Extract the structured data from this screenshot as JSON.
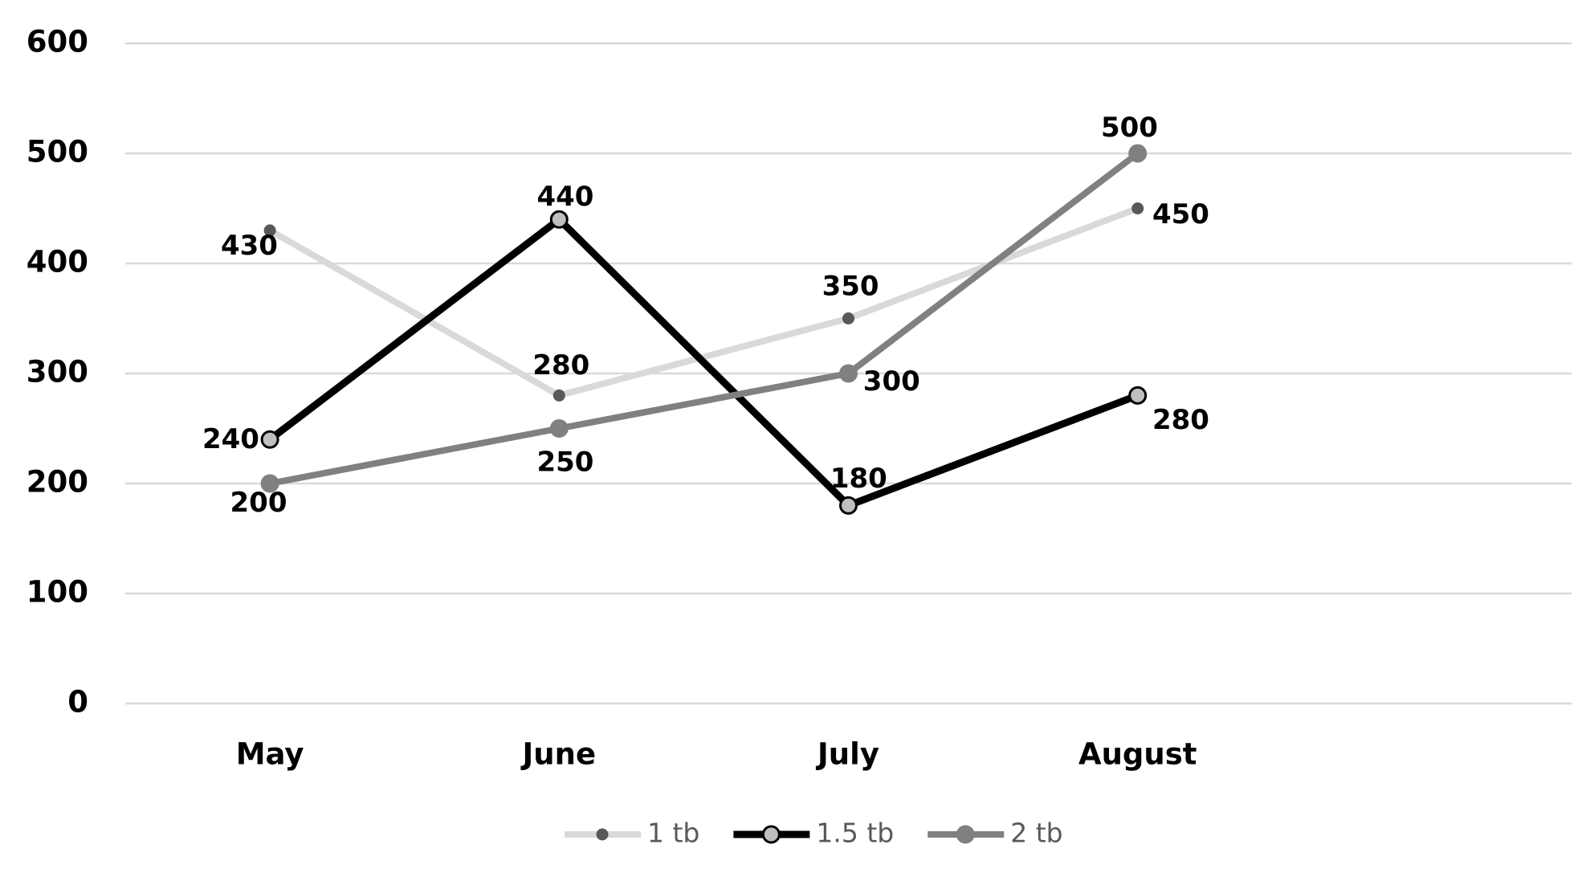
{
  "chart_data": {
    "type": "line",
    "categories": [
      "May",
      "June",
      "July",
      "August",
      null
    ],
    "series": [
      {
        "name": "1 tb",
        "color": "#d9d9d9",
        "marker_color": "#595959",
        "values": [
          430,
          280,
          350,
          450,
          null
        ]
      },
      {
        "name": "1.5 tb",
        "color": "#000000",
        "marker_color": "#bfbfbf",
        "values": [
          240,
          440,
          180,
          280,
          null
        ]
      },
      {
        "name": "2 tb",
        "color": "#808080",
        "marker_color": "#808080",
        "values": [
          200,
          250,
          300,
          500,
          null
        ]
      }
    ],
    "ylim": [
      0,
      600
    ],
    "yticks": [
      0,
      100,
      200,
      300,
      400,
      500,
      600
    ],
    "grid": true,
    "legend": "bottom"
  }
}
